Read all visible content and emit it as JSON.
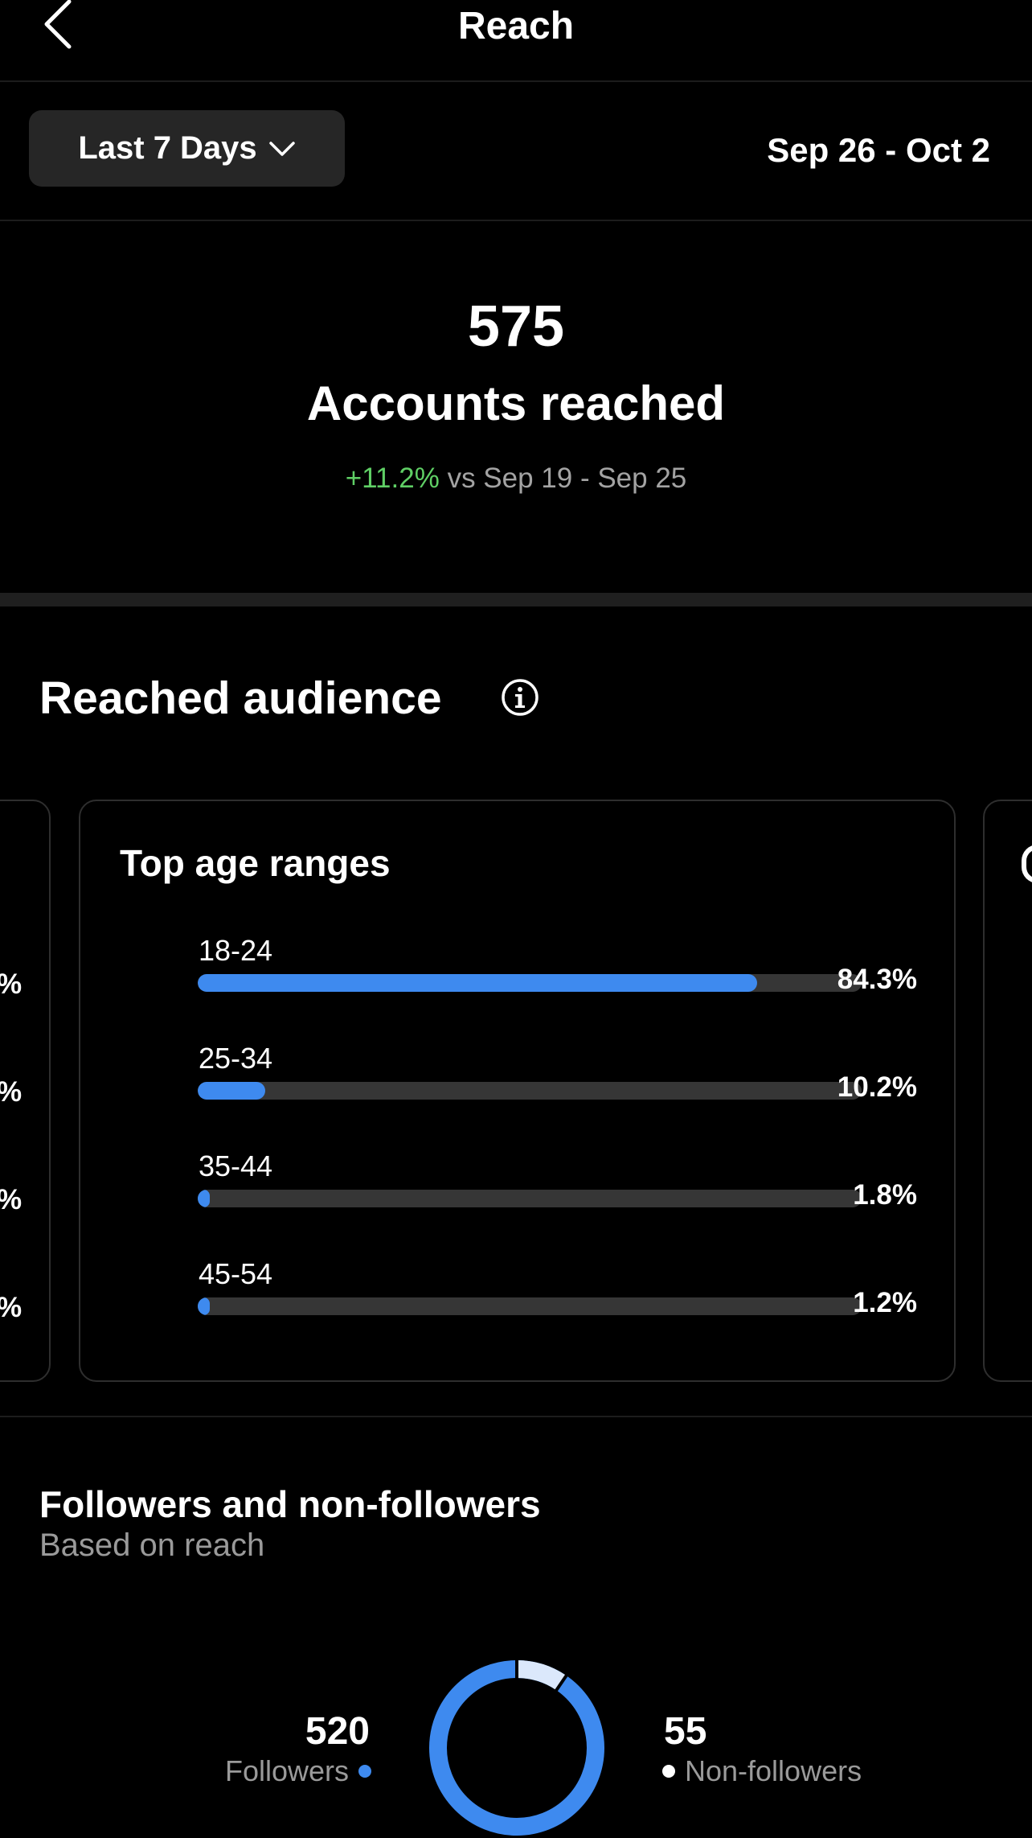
{
  "header": {
    "title": "Reach"
  },
  "filter": {
    "range_label": "Last 7 Days",
    "date_range": "Sep 26 - Oct 2"
  },
  "summary": {
    "count": "575",
    "label": "Accounts reached",
    "change": "+11.2%",
    "comparison": "vs Sep 19 - Sep 25",
    "change_color": "#5fcf65"
  },
  "audience": {
    "title": "Reached audience",
    "age_card": {
      "title": "Top age ranges",
      "rows": [
        {
          "label": "18-24",
          "value": "84.3%",
          "fraction": 0.843
        },
        {
          "label": "25-34",
          "value": "10.2%",
          "fraction": 0.102
        },
        {
          "label": "35-44",
          "value": "1.8%",
          "fraction": 0.018
        },
        {
          "label": "45-54",
          "value": "1.2%",
          "fraction": 0.012
        }
      ]
    },
    "left_card_edge": [
      "%",
      "%",
      "%",
      "%"
    ]
  },
  "followers": {
    "title": "Followers and non-followers",
    "subtitle": "Based on reach",
    "followers_count": "520",
    "followers_label": "Followers",
    "nonfollowers_count": "55",
    "nonfollowers_label": "Non-followers",
    "followers_color": "#3e8aef",
    "nonfollowers_color": "#dbe8fb"
  },
  "accent_color": "#3e8aef"
}
